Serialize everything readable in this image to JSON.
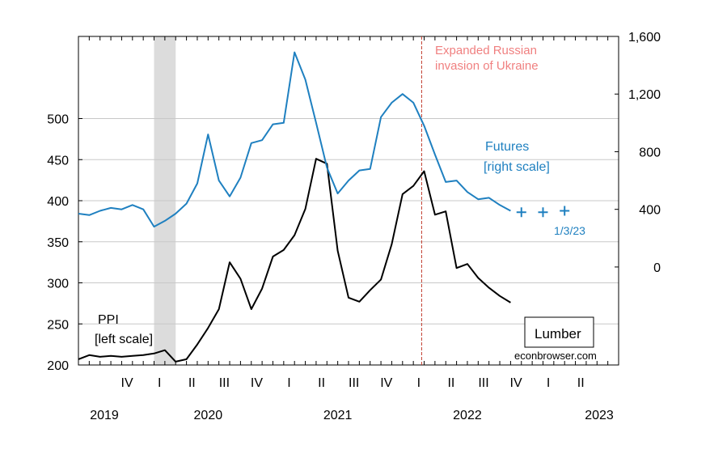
{
  "chart_data": {
    "type": "line",
    "title": "",
    "x_start": "2019-07",
    "x_end": "2023-09",
    "left_axis": {
      "ticks": [
        200,
        250,
        300,
        350,
        400,
        450,
        500
      ],
      "ylim": [
        200,
        600
      ]
    },
    "right_axis": {
      "ticks": [
        "0",
        "400",
        "800",
        "1,200",
        "1,600"
      ],
      "tick_values": [
        0,
        400,
        800,
        1200,
        1600
      ],
      "ylim": [
        -680,
        1600
      ]
    },
    "quarter_labels": [
      "IV",
      "I",
      "II",
      "III",
      "IV",
      "I",
      "II",
      "III",
      "IV",
      "I",
      "II",
      "III",
      "IV",
      "I",
      "II"
    ],
    "year_labels": [
      "2019",
      "2020",
      "2021",
      "2022",
      "2023"
    ],
    "grid": true,
    "recession_shade": {
      "start": "2020-02",
      "end": "2020-04"
    },
    "event_line": {
      "date": "2022-02-24",
      "label": [
        "Expanded Russian",
        "invasion of Ukraine"
      ],
      "color": "#c0392b"
    },
    "series": [
      {
        "name": "PPI",
        "axis": "left",
        "color": "#000000",
        "points": [
          [
            "2019-07",
            207
          ],
          [
            "2019-08",
            212
          ],
          [
            "2019-09",
            210
          ],
          [
            "2019-10",
            211
          ],
          [
            "2019-11",
            210
          ],
          [
            "2019-12",
            211
          ],
          [
            "2020-01",
            212
          ],
          [
            "2020-02",
            214
          ],
          [
            "2020-03",
            218
          ],
          [
            "2020-04",
            204
          ],
          [
            "2020-05",
            207
          ],
          [
            "2020-06",
            225
          ],
          [
            "2020-07",
            245
          ],
          [
            "2020-08",
            268
          ],
          [
            "2020-09",
            325
          ],
          [
            "2020-10",
            305
          ],
          [
            "2020-11",
            268
          ],
          [
            "2020-12",
            293
          ],
          [
            "2021-01",
            332
          ],
          [
            "2021-02",
            340
          ],
          [
            "2021-03",
            358
          ],
          [
            "2021-04",
            390
          ],
          [
            "2021-05",
            451
          ],
          [
            "2021-06",
            445
          ],
          [
            "2021-07",
            339
          ],
          [
            "2021-08",
            282
          ],
          [
            "2021-09",
            277
          ],
          [
            "2021-10",
            291
          ],
          [
            "2021-11",
            304
          ],
          [
            "2021-12",
            347
          ],
          [
            "2022-01",
            408
          ],
          [
            "2022-02",
            418
          ],
          [
            "2022-03",
            436
          ],
          [
            "2022-04",
            383
          ],
          [
            "2022-05",
            387
          ],
          [
            "2022-06",
            318
          ],
          [
            "2022-07",
            323
          ],
          [
            "2022-08",
            306
          ],
          [
            "2022-09",
            294
          ],
          [
            "2022-10",
            284
          ],
          [
            "2022-11",
            276
          ]
        ]
      },
      {
        "name": "Futures",
        "axis": "right",
        "color": "#1f80c0",
        "points": [
          [
            "2019-07",
            370
          ],
          [
            "2019-08",
            360
          ],
          [
            "2019-09",
            390
          ],
          [
            "2019-10",
            410
          ],
          [
            "2019-11",
            400
          ],
          [
            "2019-12",
            430
          ],
          [
            "2020-01",
            400
          ],
          [
            "2020-02",
            280
          ],
          [
            "2020-03",
            320
          ],
          [
            "2020-04",
            370
          ],
          [
            "2020-05",
            440
          ],
          [
            "2020-06",
            580
          ],
          [
            "2020-07",
            920
          ],
          [
            "2020-08",
            600
          ],
          [
            "2020-09",
            490
          ],
          [
            "2020-10",
            620
          ],
          [
            "2020-11",
            860
          ],
          [
            "2020-12",
            880
          ],
          [
            "2021-01",
            990
          ],
          [
            "2021-02",
            1000
          ],
          [
            "2021-03",
            1490
          ],
          [
            "2021-04",
            1300
          ],
          [
            "2021-05",
            1000
          ],
          [
            "2021-06",
            690
          ],
          [
            "2021-07",
            510
          ],
          [
            "2021-08",
            600
          ],
          [
            "2021-09",
            670
          ],
          [
            "2021-10",
            680
          ],
          [
            "2021-11",
            1040
          ],
          [
            "2021-12",
            1140
          ],
          [
            "2022-01",
            1200
          ],
          [
            "2022-02",
            1140
          ],
          [
            "2022-03",
            980
          ],
          [
            "2022-04",
            780
          ],
          [
            "2022-05",
            590
          ],
          [
            "2022-06",
            600
          ],
          [
            "2022-07",
            520
          ],
          [
            "2022-08",
            470
          ],
          [
            "2022-09",
            480
          ],
          [
            "2022-10",
            430
          ],
          [
            "2022-11",
            390
          ]
        ],
        "forward_points": [
          [
            "2022-12",
            380
          ],
          [
            "2023-02",
            380
          ],
          [
            "2023-04",
            390
          ]
        ],
        "forward_label": "1/3/23"
      }
    ],
    "annotations": {
      "ppi_label": [
        "PPI",
        "[left scale]"
      ],
      "futures_label": [
        "Futures",
        "[right scale]"
      ],
      "legend_box": "Lumber",
      "source": "econbrowser.com"
    }
  }
}
